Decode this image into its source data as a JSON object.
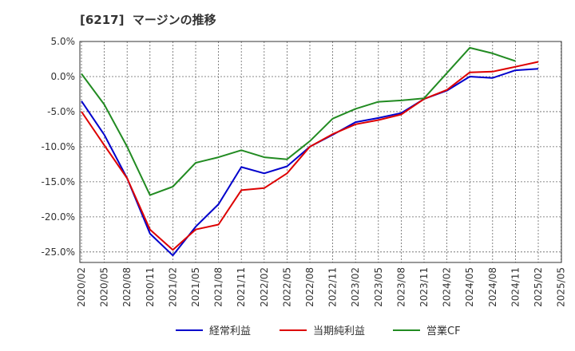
{
  "chart_data": {
    "type": "line",
    "title": "[6217]  マージンの推移",
    "x": [
      "2020/02",
      "2020/05",
      "2020/08",
      "2020/11",
      "2021/02",
      "2021/05",
      "2021/08",
      "2021/11",
      "2022/02",
      "2022/05",
      "2022/08",
      "2022/11",
      "2023/02",
      "2023/05",
      "2023/08",
      "2023/11",
      "2024/02",
      "2024/05",
      "2024/08",
      "2024/11",
      "2025/02",
      "2025/05"
    ],
    "ylim": [
      -26.5,
      5.0
    ],
    "yticks": [
      5.0,
      0.0,
      -5.0,
      -10.0,
      -15.0,
      -20.0,
      -25.0
    ],
    "ytick_labels": [
      "5.0%",
      "0.0%",
      "-5.0%",
      "-10.0%",
      "-15.0%",
      "-20.0%",
      "-25.0%"
    ],
    "grid": true,
    "legend_position": "bottom",
    "series": [
      {
        "name": "経常利益",
        "color": "#0000cc",
        "values": [
          -3.5,
          -8.3,
          -14.5,
          -22.4,
          -25.5,
          -21.4,
          -18.2,
          -12.9,
          -13.8,
          -12.8,
          -10.0,
          -8.3,
          -6.5,
          -5.9,
          -5.2,
          -3.2,
          -2.0,
          0.0,
          -0.2,
          0.9,
          1.1,
          null
        ]
      },
      {
        "name": "当期純利益",
        "color": "#dd0000",
        "values": [
          -5.0,
          -9.8,
          -14.5,
          -21.8,
          -24.7,
          -21.8,
          -21.1,
          -16.2,
          -15.9,
          -13.8,
          -10.0,
          -8.2,
          -6.8,
          -6.2,
          -5.4,
          -3.2,
          -1.9,
          0.6,
          0.7,
          1.4,
          2.1,
          null
        ]
      },
      {
        "name": "営業CF",
        "color": "#228b22",
        "values": [
          0.4,
          -4.0,
          -10.0,
          -16.9,
          -15.7,
          -12.3,
          -11.5,
          -10.5,
          -11.5,
          -11.8,
          -9.2,
          -6.0,
          -4.6,
          -3.6,
          -3.4,
          -3.1,
          0.5,
          4.1,
          3.3,
          2.2,
          null,
          null
        ]
      }
    ]
  }
}
